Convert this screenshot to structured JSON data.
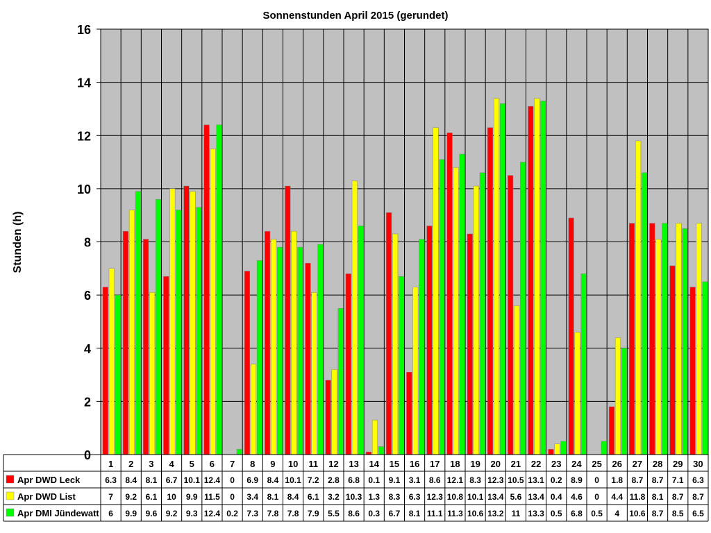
{
  "chart_data": {
    "type": "bar",
    "title": "Sonnenstunden April 2015 (gerundet)",
    "ylabel": "Stunden (h)",
    "xlabel": "",
    "ylim": [
      0,
      16
    ],
    "yticks": [
      "0",
      "2",
      "4",
      "6",
      "8",
      "10",
      "12",
      "14",
      "16"
    ],
    "grid": true,
    "legend": "table-left",
    "categories": [
      "1",
      "2",
      "3",
      "4",
      "5",
      "6",
      "7",
      "8",
      "9",
      "10",
      "11",
      "12",
      "13",
      "14",
      "15",
      "16",
      "17",
      "18",
      "19",
      "20",
      "21",
      "22",
      "23",
      "24",
      "25",
      "26",
      "27",
      "28",
      "29",
      "30"
    ],
    "series": [
      {
        "name": "Apr DWD Leck",
        "color": "#ff0000",
        "values": [
          6.3,
          8.4,
          8.1,
          6.7,
          10.1,
          12.4,
          0,
          6.9,
          8.4,
          10.1,
          7.2,
          2.8,
          6.8,
          0.1,
          9.1,
          3.1,
          8.6,
          12.1,
          8.3,
          12.3,
          10.5,
          13.1,
          0.2,
          8.9,
          0,
          1.8,
          8.7,
          8.7,
          7.1,
          6.3
        ],
        "labels": [
          "6.3",
          "8.4",
          "8.1",
          "6.7",
          "10.1",
          "12.4",
          "0",
          "6.9",
          "8.4",
          "10.1",
          "7.2",
          "2.8",
          "6.8",
          "0.1",
          "9.1",
          "3.1",
          "8.6",
          "12.1",
          "8.3",
          "12.3",
          "10.5",
          "13.1",
          "0.2",
          "8.9",
          "0",
          "1.8",
          "8.7",
          "8.7",
          "7.1",
          "6.3"
        ]
      },
      {
        "name": "Apr DWD List",
        "color": "#ffff00",
        "values": [
          7,
          9.2,
          6.1,
          10,
          9.9,
          11.5,
          0,
          3.4,
          8.1,
          8.4,
          6.1,
          3.2,
          10.3,
          1.3,
          8.3,
          6.3,
          12.3,
          10.8,
          10.1,
          13.4,
          5.6,
          13.4,
          0.4,
          4.6,
          0,
          4.4,
          11.8,
          8.1,
          8.7,
          8.7
        ],
        "labels": [
          "7",
          "9.2",
          "6.1",
          "10",
          "9.9",
          "11.5",
          "0",
          "3.4",
          "8.1",
          "8.4",
          "6.1",
          "3.2",
          "10.3",
          "1.3",
          "8.3",
          "6.3",
          "12.3",
          "10.8",
          "10.1",
          "13.4",
          "5.6",
          "13.4",
          "0.4",
          "4.6",
          "0",
          "4.4",
          "11.8",
          "8.1",
          "8.7",
          "8.7"
        ]
      },
      {
        "name": "Apr DMI Jündewatt",
        "color": "#00ff00",
        "values": [
          6,
          9.9,
          9.6,
          9.2,
          9.3,
          12.4,
          0.2,
          7.3,
          7.8,
          7.8,
          7.9,
          5.5,
          8.6,
          0.3,
          6.7,
          8.1,
          11.1,
          11.3,
          10.6,
          13.2,
          11,
          13.3,
          0.5,
          6.8,
          0.5,
          4,
          10.6,
          8.7,
          8.5,
          6.5
        ],
        "labels": [
          "6",
          "9.9",
          "9.6",
          "9.2",
          "9.3",
          "12.4",
          "0.2",
          "7.3",
          "7.8",
          "7.8",
          "7.9",
          "5.5",
          "8.6",
          "0.3",
          "6.7",
          "8.1",
          "11.1",
          "11.3",
          "10.6",
          "13.2",
          "11",
          "13.3",
          "0.5",
          "6.8",
          "0.5",
          "4",
          "10.6",
          "8.7",
          "8.5",
          "6.5"
        ]
      }
    ],
    "colors": {
      "plot_background": "#c0c0c0",
      "bar_edge": "#808080",
      "grid": "#000000"
    }
  }
}
